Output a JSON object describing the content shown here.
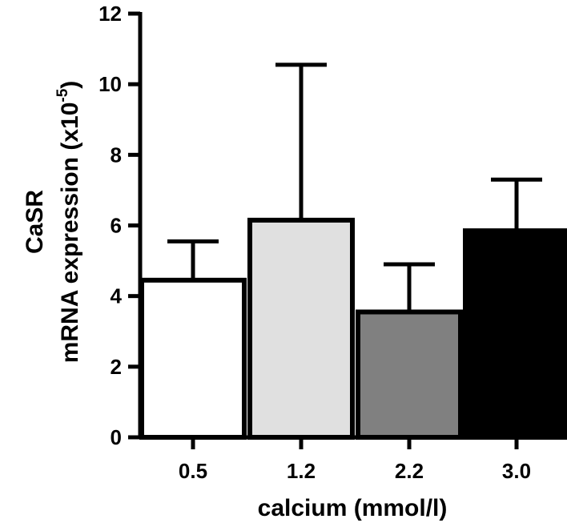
{
  "chart_data": {
    "type": "bar",
    "categories": [
      "0.5",
      "1.2",
      "2.2",
      "3.0"
    ],
    "values": [
      4.45,
      6.15,
      3.55,
      5.85
    ],
    "error_upper": [
      5.55,
      10.55,
      4.9,
      7.3
    ],
    "bar_colors": [
      "#ffffff",
      "#e0e0e0",
      "#808080",
      "#000000"
    ],
    "xlabel": "calcium (mmol/l)",
    "ylabel_line1": "CaSR",
    "ylabel_line2_prefix": "mRNA expression (x10",
    "ylabel_exponent": "-5",
    "ylabel_line2_suffix": ")",
    "ylim": [
      0,
      12
    ],
    "yticks": [
      "0",
      "2",
      "4",
      "6",
      "8",
      "10",
      "12"
    ],
    "grid": false,
    "legend": "none"
  }
}
